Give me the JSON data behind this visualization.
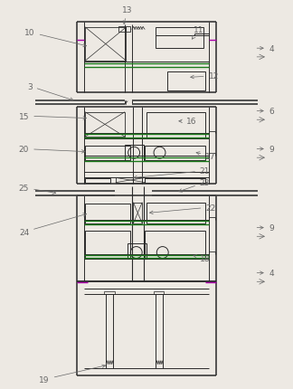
{
  "bg_color": "#ede9e3",
  "line_color": "#2a2a2a",
  "green_color": "#1a7a1a",
  "purple_color": "#aa00aa",
  "gray_color": "#777777",
  "dark_color": "#111111"
}
